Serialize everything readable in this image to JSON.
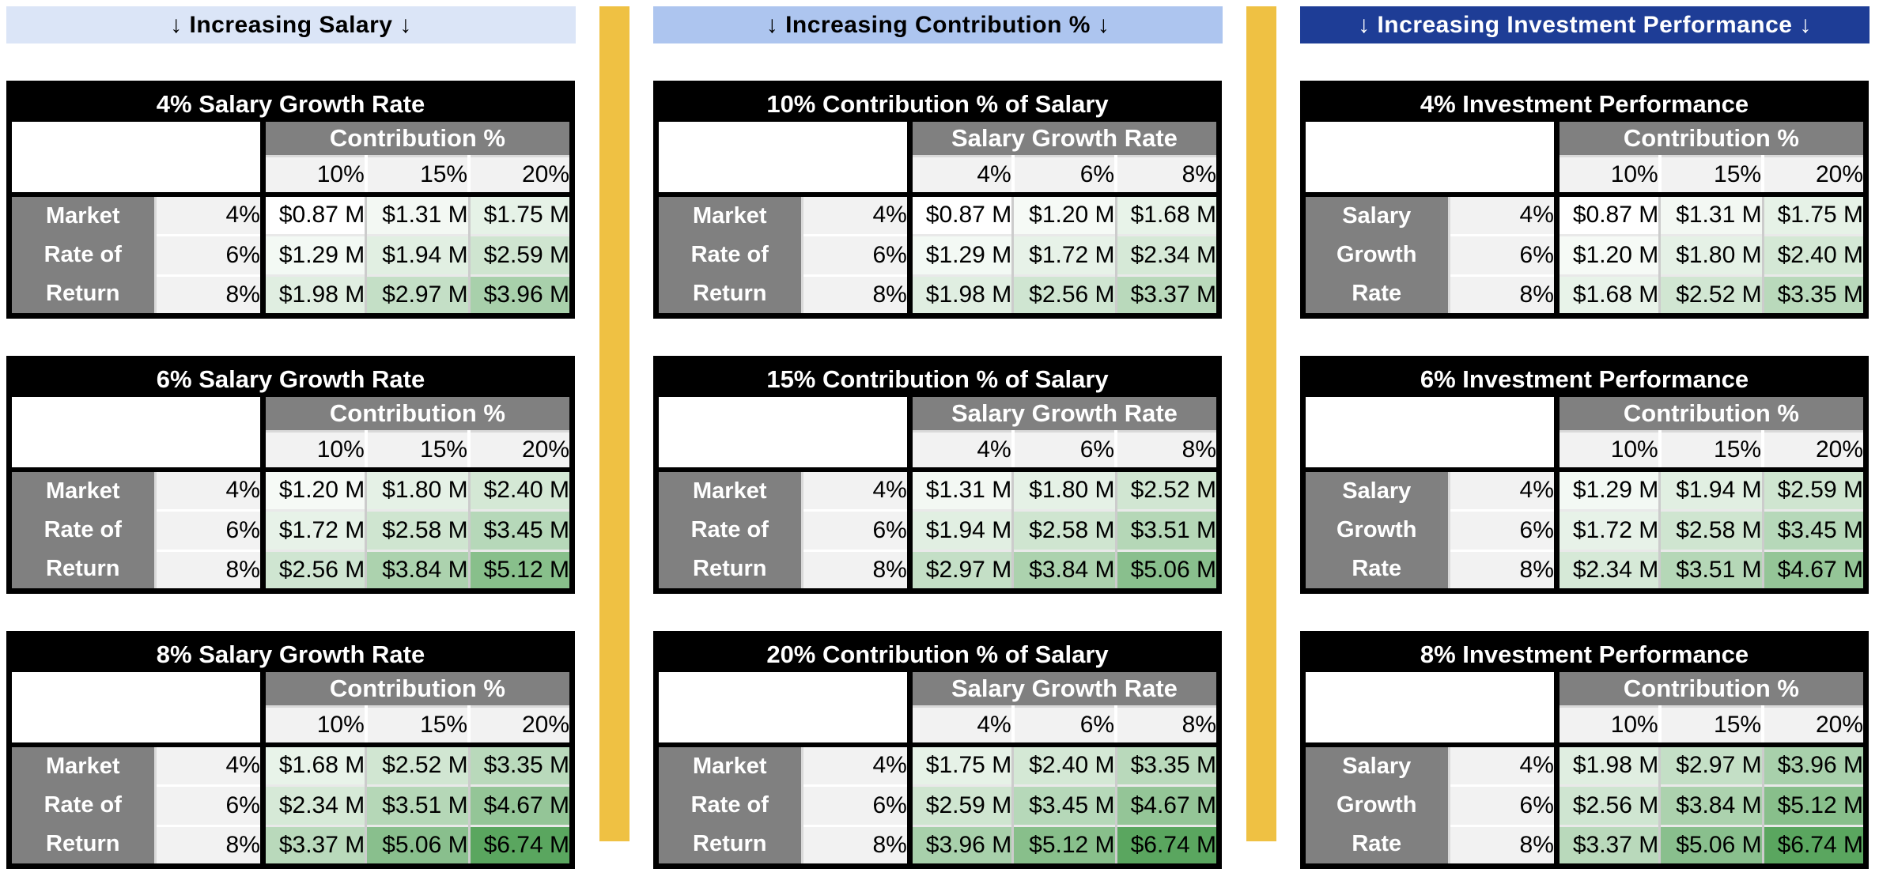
{
  "page": {
    "background": "#ffffff"
  },
  "colors": {
    "separator": "#efc143",
    "table_title_bg": "#000000",
    "table_title_fg": "#ffffff",
    "axis_header_bg": "#808080",
    "axis_header_fg": "#ffffff",
    "tick_bg": "#f2f2f2",
    "tick_fg": "#000000",
    "cell_fg": "#000000",
    "scale_min_color": "#ffffff",
    "scale_max_color": "#5aa65f"
  },
  "color_scale": {
    "min_value": 0.87,
    "max_value": 6.74,
    "unit": "millions USD"
  },
  "banners": [
    {
      "label": "↓ Increasing Salary ↓",
      "bg": "#dbe5f7",
      "fg": "#000000"
    },
    {
      "label": "↓ Increasing Contribution % ↓",
      "bg": "#adc5ef",
      "fg": "#000000"
    },
    {
      "label": "↓ Increasing Investment Performance ↓",
      "bg": "#1e3d96",
      "fg": "#ffffff"
    }
  ],
  "groups": [
    {
      "banner_index": 0,
      "table_indices": [
        0,
        1,
        2
      ]
    },
    {
      "banner_index": 1,
      "table_indices": [
        3,
        4,
        5
      ]
    },
    {
      "banner_index": 2,
      "table_indices": [
        6,
        7,
        8
      ]
    }
  ],
  "chart_data": [
    {
      "type": "heatmap",
      "group": "Increasing Salary",
      "title": "4% Salary Growth Rate",
      "x_axis": "Contribution %",
      "x_ticks": [
        "10%",
        "15%",
        "20%"
      ],
      "y_axis": "Market Rate of Return",
      "y_axis_lines": [
        "Market",
        "Rate of",
        "Return"
      ],
      "y_ticks": [
        "4%",
        "6%",
        "8%"
      ],
      "values_millions": [
        [
          0.87,
          1.31,
          1.75
        ],
        [
          1.29,
          1.94,
          2.59
        ],
        [
          1.98,
          2.97,
          3.96
        ]
      ],
      "cell_labels": [
        [
          "$0.87 M",
          "$1.31 M",
          "$1.75 M"
        ],
        [
          "$1.29 M",
          "$1.94 M",
          "$2.59 M"
        ],
        [
          "$1.98 M",
          "$2.97 M",
          "$3.96 M"
        ]
      ]
    },
    {
      "type": "heatmap",
      "group": "Increasing Salary",
      "title": "6% Salary Growth Rate",
      "x_axis": "Contribution %",
      "x_ticks": [
        "10%",
        "15%",
        "20%"
      ],
      "y_axis": "Market Rate of Return",
      "y_axis_lines": [
        "Market",
        "Rate of",
        "Return"
      ],
      "y_ticks": [
        "4%",
        "6%",
        "8%"
      ],
      "values_millions": [
        [
          1.2,
          1.8,
          2.4
        ],
        [
          1.72,
          2.58,
          3.45
        ],
        [
          2.56,
          3.84,
          5.12
        ]
      ],
      "cell_labels": [
        [
          "$1.20 M",
          "$1.80 M",
          "$2.40 M"
        ],
        [
          "$1.72 M",
          "$2.58 M",
          "$3.45 M"
        ],
        [
          "$2.56 M",
          "$3.84 M",
          "$5.12 M"
        ]
      ]
    },
    {
      "type": "heatmap",
      "group": "Increasing Salary",
      "title": "8% Salary Growth Rate",
      "x_axis": "Contribution %",
      "x_ticks": [
        "10%",
        "15%",
        "20%"
      ],
      "y_axis": "Market Rate of Return",
      "y_axis_lines": [
        "Market",
        "Rate of",
        "Return"
      ],
      "y_ticks": [
        "4%",
        "6%",
        "8%"
      ],
      "values_millions": [
        [
          1.68,
          2.52,
          3.35
        ],
        [
          2.34,
          3.51,
          4.67
        ],
        [
          3.37,
          5.06,
          6.74
        ]
      ],
      "cell_labels": [
        [
          "$1.68 M",
          "$2.52 M",
          "$3.35 M"
        ],
        [
          "$2.34 M",
          "$3.51 M",
          "$4.67 M"
        ],
        [
          "$3.37 M",
          "$5.06 M",
          "$6.74 M"
        ]
      ]
    },
    {
      "type": "heatmap",
      "group": "Increasing Contribution %",
      "title": "10% Contribution % of Salary",
      "x_axis": "Salary Growth Rate",
      "x_ticks": [
        "4%",
        "6%",
        "8%"
      ],
      "y_axis": "Market Rate of Return",
      "y_axis_lines": [
        "Market",
        "Rate of",
        "Return"
      ],
      "y_ticks": [
        "4%",
        "6%",
        "8%"
      ],
      "values_millions": [
        [
          0.87,
          1.2,
          1.68
        ],
        [
          1.29,
          1.72,
          2.34
        ],
        [
          1.98,
          2.56,
          3.37
        ]
      ],
      "cell_labels": [
        [
          "$0.87 M",
          "$1.20 M",
          "$1.68 M"
        ],
        [
          "$1.29 M",
          "$1.72 M",
          "$2.34 M"
        ],
        [
          "$1.98 M",
          "$2.56 M",
          "$3.37 M"
        ]
      ]
    },
    {
      "type": "heatmap",
      "group": "Increasing Contribution %",
      "title": "15% Contribution % of Salary",
      "x_axis": "Salary Growth Rate",
      "x_ticks": [
        "4%",
        "6%",
        "8%"
      ],
      "y_axis": "Market Rate of Return",
      "y_axis_lines": [
        "Market",
        "Rate of",
        "Return"
      ],
      "y_ticks": [
        "4%",
        "6%",
        "8%"
      ],
      "values_millions": [
        [
          1.31,
          1.8,
          2.52
        ],
        [
          1.94,
          2.58,
          3.51
        ],
        [
          2.97,
          3.84,
          5.06
        ]
      ],
      "cell_labels": [
        [
          "$1.31 M",
          "$1.80 M",
          "$2.52 M"
        ],
        [
          "$1.94 M",
          "$2.58 M",
          "$3.51 M"
        ],
        [
          "$2.97 M",
          "$3.84 M",
          "$5.06 M"
        ]
      ]
    },
    {
      "type": "heatmap",
      "group": "Increasing Contribution %",
      "title": "20% Contribution % of Salary",
      "x_axis": "Salary Growth Rate",
      "x_ticks": [
        "4%",
        "6%",
        "8%"
      ],
      "y_axis": "Market Rate of Return",
      "y_axis_lines": [
        "Market",
        "Rate of",
        "Return"
      ],
      "y_ticks": [
        "4%",
        "6%",
        "8%"
      ],
      "values_millions": [
        [
          1.75,
          2.4,
          3.35
        ],
        [
          2.59,
          3.45,
          4.67
        ],
        [
          3.96,
          5.12,
          6.74
        ]
      ],
      "cell_labels": [
        [
          "$1.75 M",
          "$2.40 M",
          "$3.35 M"
        ],
        [
          "$2.59 M",
          "$3.45 M",
          "$4.67 M"
        ],
        [
          "$3.96 M",
          "$5.12 M",
          "$6.74 M"
        ]
      ]
    },
    {
      "type": "heatmap",
      "group": "Increasing Investment Performance",
      "title": "4% Investment Performance",
      "x_axis": "Contribution %",
      "x_ticks": [
        "10%",
        "15%",
        "20%"
      ],
      "y_axis": "Salary Growth Rate",
      "y_axis_lines": [
        "Salary",
        "Growth",
        "Rate"
      ],
      "y_ticks": [
        "4%",
        "6%",
        "8%"
      ],
      "values_millions": [
        [
          0.87,
          1.31,
          1.75
        ],
        [
          1.2,
          1.8,
          2.4
        ],
        [
          1.68,
          2.52,
          3.35
        ]
      ],
      "cell_labels": [
        [
          "$0.87 M",
          "$1.31 M",
          "$1.75 M"
        ],
        [
          "$1.20 M",
          "$1.80 M",
          "$2.40 M"
        ],
        [
          "$1.68 M",
          "$2.52 M",
          "$3.35 M"
        ]
      ]
    },
    {
      "type": "heatmap",
      "group": "Increasing Investment Performance",
      "title": "6% Investment Performance",
      "x_axis": "Contribution %",
      "x_ticks": [
        "10%",
        "15%",
        "20%"
      ],
      "y_axis": "Salary Growth Rate",
      "y_axis_lines": [
        "Salary",
        "Growth",
        "Rate"
      ],
      "y_ticks": [
        "4%",
        "6%",
        "8%"
      ],
      "values_millions": [
        [
          1.29,
          1.94,
          2.59
        ],
        [
          1.72,
          2.58,
          3.45
        ],
        [
          2.34,
          3.51,
          4.67
        ]
      ],
      "cell_labels": [
        [
          "$1.29 M",
          "$1.94 M",
          "$2.59 M"
        ],
        [
          "$1.72 M",
          "$2.58 M",
          "$3.45 M"
        ],
        [
          "$2.34 M",
          "$3.51 M",
          "$4.67 M"
        ]
      ]
    },
    {
      "type": "heatmap",
      "group": "Increasing Investment Performance",
      "title": "8% Investment Performance",
      "x_axis": "Contribution %",
      "x_ticks": [
        "10%",
        "15%",
        "20%"
      ],
      "y_axis": "Salary Growth Rate",
      "y_axis_lines": [
        "Salary",
        "Growth",
        "Rate"
      ],
      "y_ticks": [
        "4%",
        "6%",
        "8%"
      ],
      "values_millions": [
        [
          1.98,
          2.97,
          3.96
        ],
        [
          2.56,
          3.84,
          5.12
        ],
        [
          3.37,
          5.06,
          6.74
        ]
      ],
      "cell_labels": [
        [
          "$1.98 M",
          "$2.97 M",
          "$3.96 M"
        ],
        [
          "$2.56 M",
          "$3.84 M",
          "$5.12 M"
        ],
        [
          "$3.37 M",
          "$5.06 M",
          "$6.74 M"
        ]
      ]
    }
  ]
}
